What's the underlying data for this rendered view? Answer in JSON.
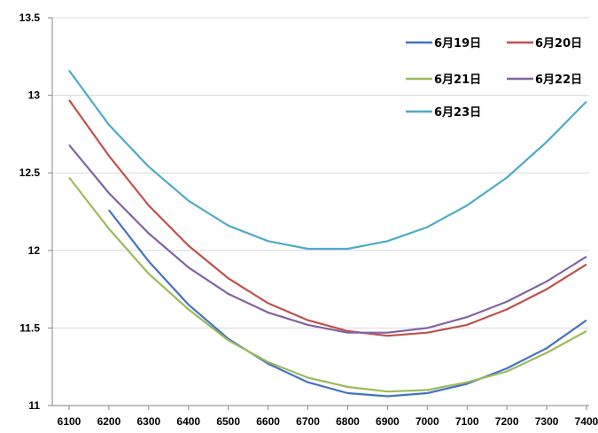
{
  "chart_data": {
    "type": "line",
    "title": "",
    "xlabel": "",
    "ylabel": "",
    "x": [
      6100,
      6200,
      6300,
      6400,
      6500,
      6600,
      6700,
      6800,
      6900,
      7000,
      7100,
      7200,
      7300,
      7400
    ],
    "x_tick_labels": [
      "6100",
      "6200",
      "6300",
      "6400",
      "6500",
      "6600",
      "6700",
      "6800",
      "6900",
      "7000",
      "7100",
      "7200",
      "7300",
      "7400"
    ],
    "ylim": [
      11,
      13.5
    ],
    "y_ticks": [
      11,
      11.5,
      12,
      12.5,
      13,
      13.5
    ],
    "y_tick_labels": [
      "11",
      "11.5",
      "12",
      "12.5",
      "13",
      "13.5"
    ],
    "grid": "horizontal",
    "legend_position": "top-right",
    "series": [
      {
        "name": "6月19日",
        "color": "#4472C4",
        "values": [
          null,
          12.26,
          11.93,
          11.65,
          11.43,
          11.27,
          11.15,
          11.08,
          11.06,
          11.08,
          11.14,
          11.24,
          11.37,
          11.55
        ]
      },
      {
        "name": "6月20日",
        "color": "#C0504D",
        "values": [
          12.97,
          12.61,
          12.29,
          12.03,
          11.82,
          11.66,
          11.55,
          11.48,
          11.45,
          11.47,
          11.52,
          11.62,
          11.75,
          11.91
        ]
      },
      {
        "name": "6月21日",
        "color": "#9BBB59",
        "values": [
          12.47,
          12.14,
          11.85,
          11.62,
          11.42,
          11.28,
          11.18,
          11.12,
          11.09,
          11.1,
          11.15,
          11.22,
          11.34,
          11.48
        ]
      },
      {
        "name": "6月22日",
        "color": "#8064A2",
        "values": [
          12.68,
          12.37,
          12.11,
          11.89,
          11.72,
          11.6,
          11.52,
          11.47,
          11.47,
          11.5,
          11.57,
          11.67,
          11.8,
          11.96
        ]
      },
      {
        "name": "6月23日",
        "color": "#4BACC6",
        "values": [
          13.16,
          12.81,
          12.54,
          12.32,
          12.16,
          12.06,
          12.01,
          12.01,
          12.06,
          12.15,
          12.29,
          12.47,
          12.7,
          12.96
        ]
      }
    ]
  }
}
